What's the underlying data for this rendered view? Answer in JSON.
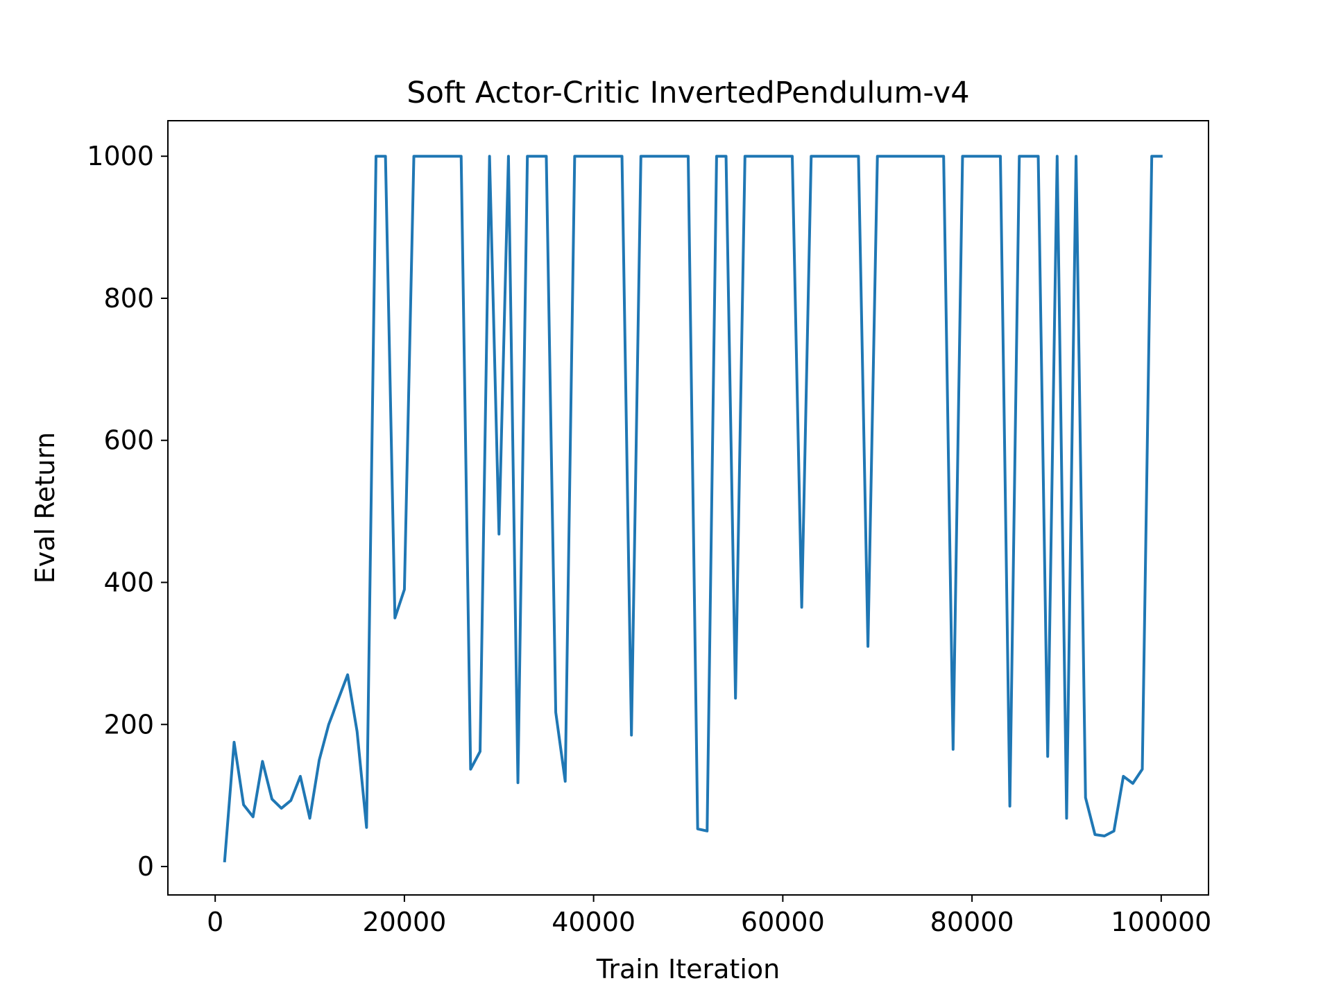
{
  "chart_data": {
    "type": "line",
    "title": "Soft Actor-Critic InvertedPendulum-v4",
    "xlabel": "Train Iteration",
    "ylabel": "Eval Return",
    "xlim": [
      -5000,
      105000
    ],
    "ylim": [
      -40,
      1050
    ],
    "x_ticks": [
      0,
      20000,
      40000,
      60000,
      80000,
      100000
    ],
    "x_tick_labels": [
      "0",
      "20000",
      "40000",
      "60000",
      "80000",
      "100000"
    ],
    "y_ticks": [
      0,
      200,
      400,
      600,
      800,
      1000
    ],
    "y_tick_labels": [
      "0",
      "200",
      "400",
      "600",
      "800",
      "1000"
    ],
    "grid": false,
    "series": [
      {
        "color": "#1f77b4",
        "x": [
          1000,
          2000,
          3000,
          4000,
          5000,
          6000,
          7000,
          8000,
          9000,
          10000,
          11000,
          12000,
          13000,
          14000,
          15000,
          16000,
          17000,
          18000,
          19000,
          20000,
          21000,
          22000,
          23000,
          24000,
          25000,
          26000,
          27000,
          28000,
          29000,
          30000,
          31000,
          32000,
          33000,
          34000,
          35000,
          36000,
          37000,
          38000,
          39000,
          40000,
          41000,
          42000,
          43000,
          44000,
          45000,
          46000,
          47000,
          48000,
          49000,
          50000,
          51000,
          52000,
          53000,
          54000,
          55000,
          56000,
          57000,
          58000,
          59000,
          60000,
          61000,
          62000,
          63000,
          64000,
          65000,
          66000,
          67000,
          68000,
          69000,
          70000,
          71000,
          72000,
          73000,
          74000,
          75000,
          76000,
          77000,
          78000,
          79000,
          80000,
          81000,
          82000,
          83000,
          84000,
          85000,
          86000,
          87000,
          88000,
          89000,
          90000,
          91000,
          92000,
          93000,
          94000,
          95000,
          96000,
          97000,
          98000,
          99000,
          100000
        ],
        "values": [
          8,
          175,
          87,
          70,
          148,
          95,
          82,
          93,
          127,
          68,
          150,
          200,
          235,
          270,
          190,
          55,
          1000,
          1000,
          350,
          390,
          1000,
          1000,
          1000,
          1000,
          1000,
          1000,
          137,
          162,
          1000,
          468,
          1000,
          118,
          1000,
          1000,
          1000,
          217,
          120,
          1000,
          1000,
          1000,
          1000,
          1000,
          1000,
          185,
          1000,
          1000,
          1000,
          1000,
          1000,
          1000,
          53,
          50,
          1000,
          1000,
          237,
          1000,
          1000,
          1000,
          1000,
          1000,
          1000,
          365,
          1000,
          1000,
          1000,
          1000,
          1000,
          1000,
          310,
          1000,
          1000,
          1000,
          1000,
          1000,
          1000,
          1000,
          1000,
          165,
          1000,
          1000,
          1000,
          1000,
          1000,
          85,
          1000,
          1000,
          1000,
          155,
          1000,
          68,
          1000,
          97,
          45,
          43,
          50,
          127,
          117,
          137,
          1000,
          1000
        ]
      }
    ]
  }
}
